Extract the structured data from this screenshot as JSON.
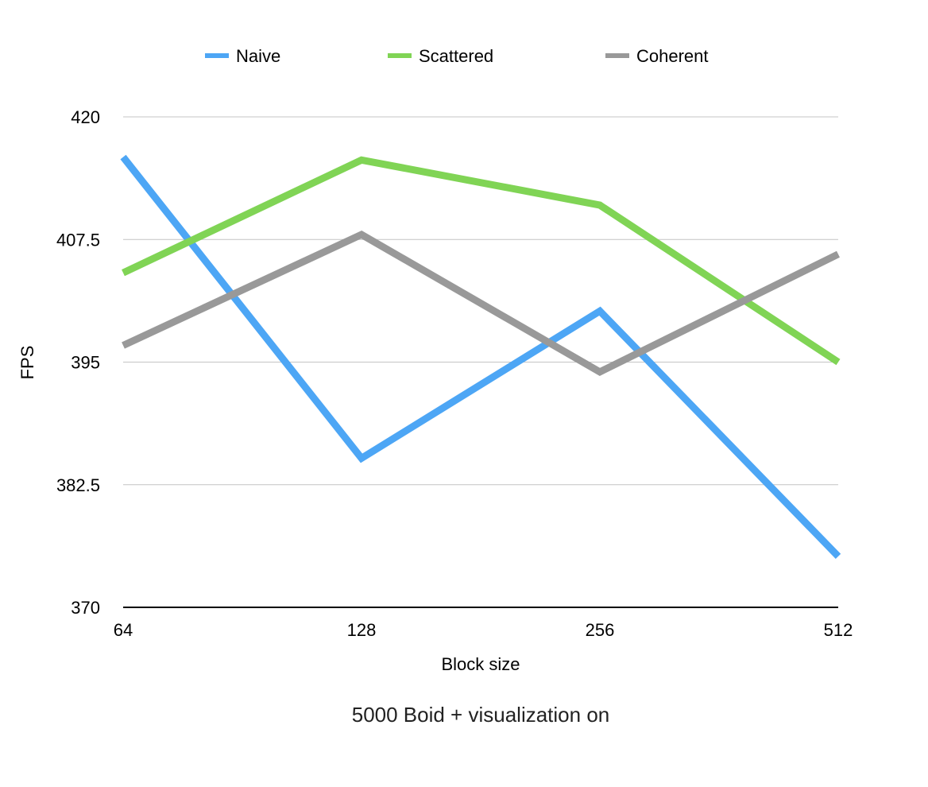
{
  "chart_data": {
    "type": "line",
    "title": "",
    "caption": "5000 Boid + visualization on",
    "xlabel": "Block size",
    "ylabel": "FPS",
    "categories": [
      "64",
      "128",
      "256",
      "512"
    ],
    "ylim": [
      370,
      420
    ],
    "yticks": [
      370,
      382.5,
      395,
      407.5,
      420
    ],
    "ytick_labels": [
      "370",
      "382.5",
      "395",
      "407.5",
      "420"
    ],
    "grid": true,
    "legend_position": "top",
    "series": [
      {
        "name": "Naive",
        "color": "#4da6f5",
        "values": [
          415.9,
          385.2,
          400.2,
          375.2
        ]
      },
      {
        "name": "Scattered",
        "color": "#80d455",
        "values": [
          404.1,
          415.6,
          411.0,
          395.0
        ]
      },
      {
        "name": "Coherent",
        "color": "#999999",
        "values": [
          396.7,
          408.0,
          394.0,
          406.0
        ]
      }
    ]
  }
}
